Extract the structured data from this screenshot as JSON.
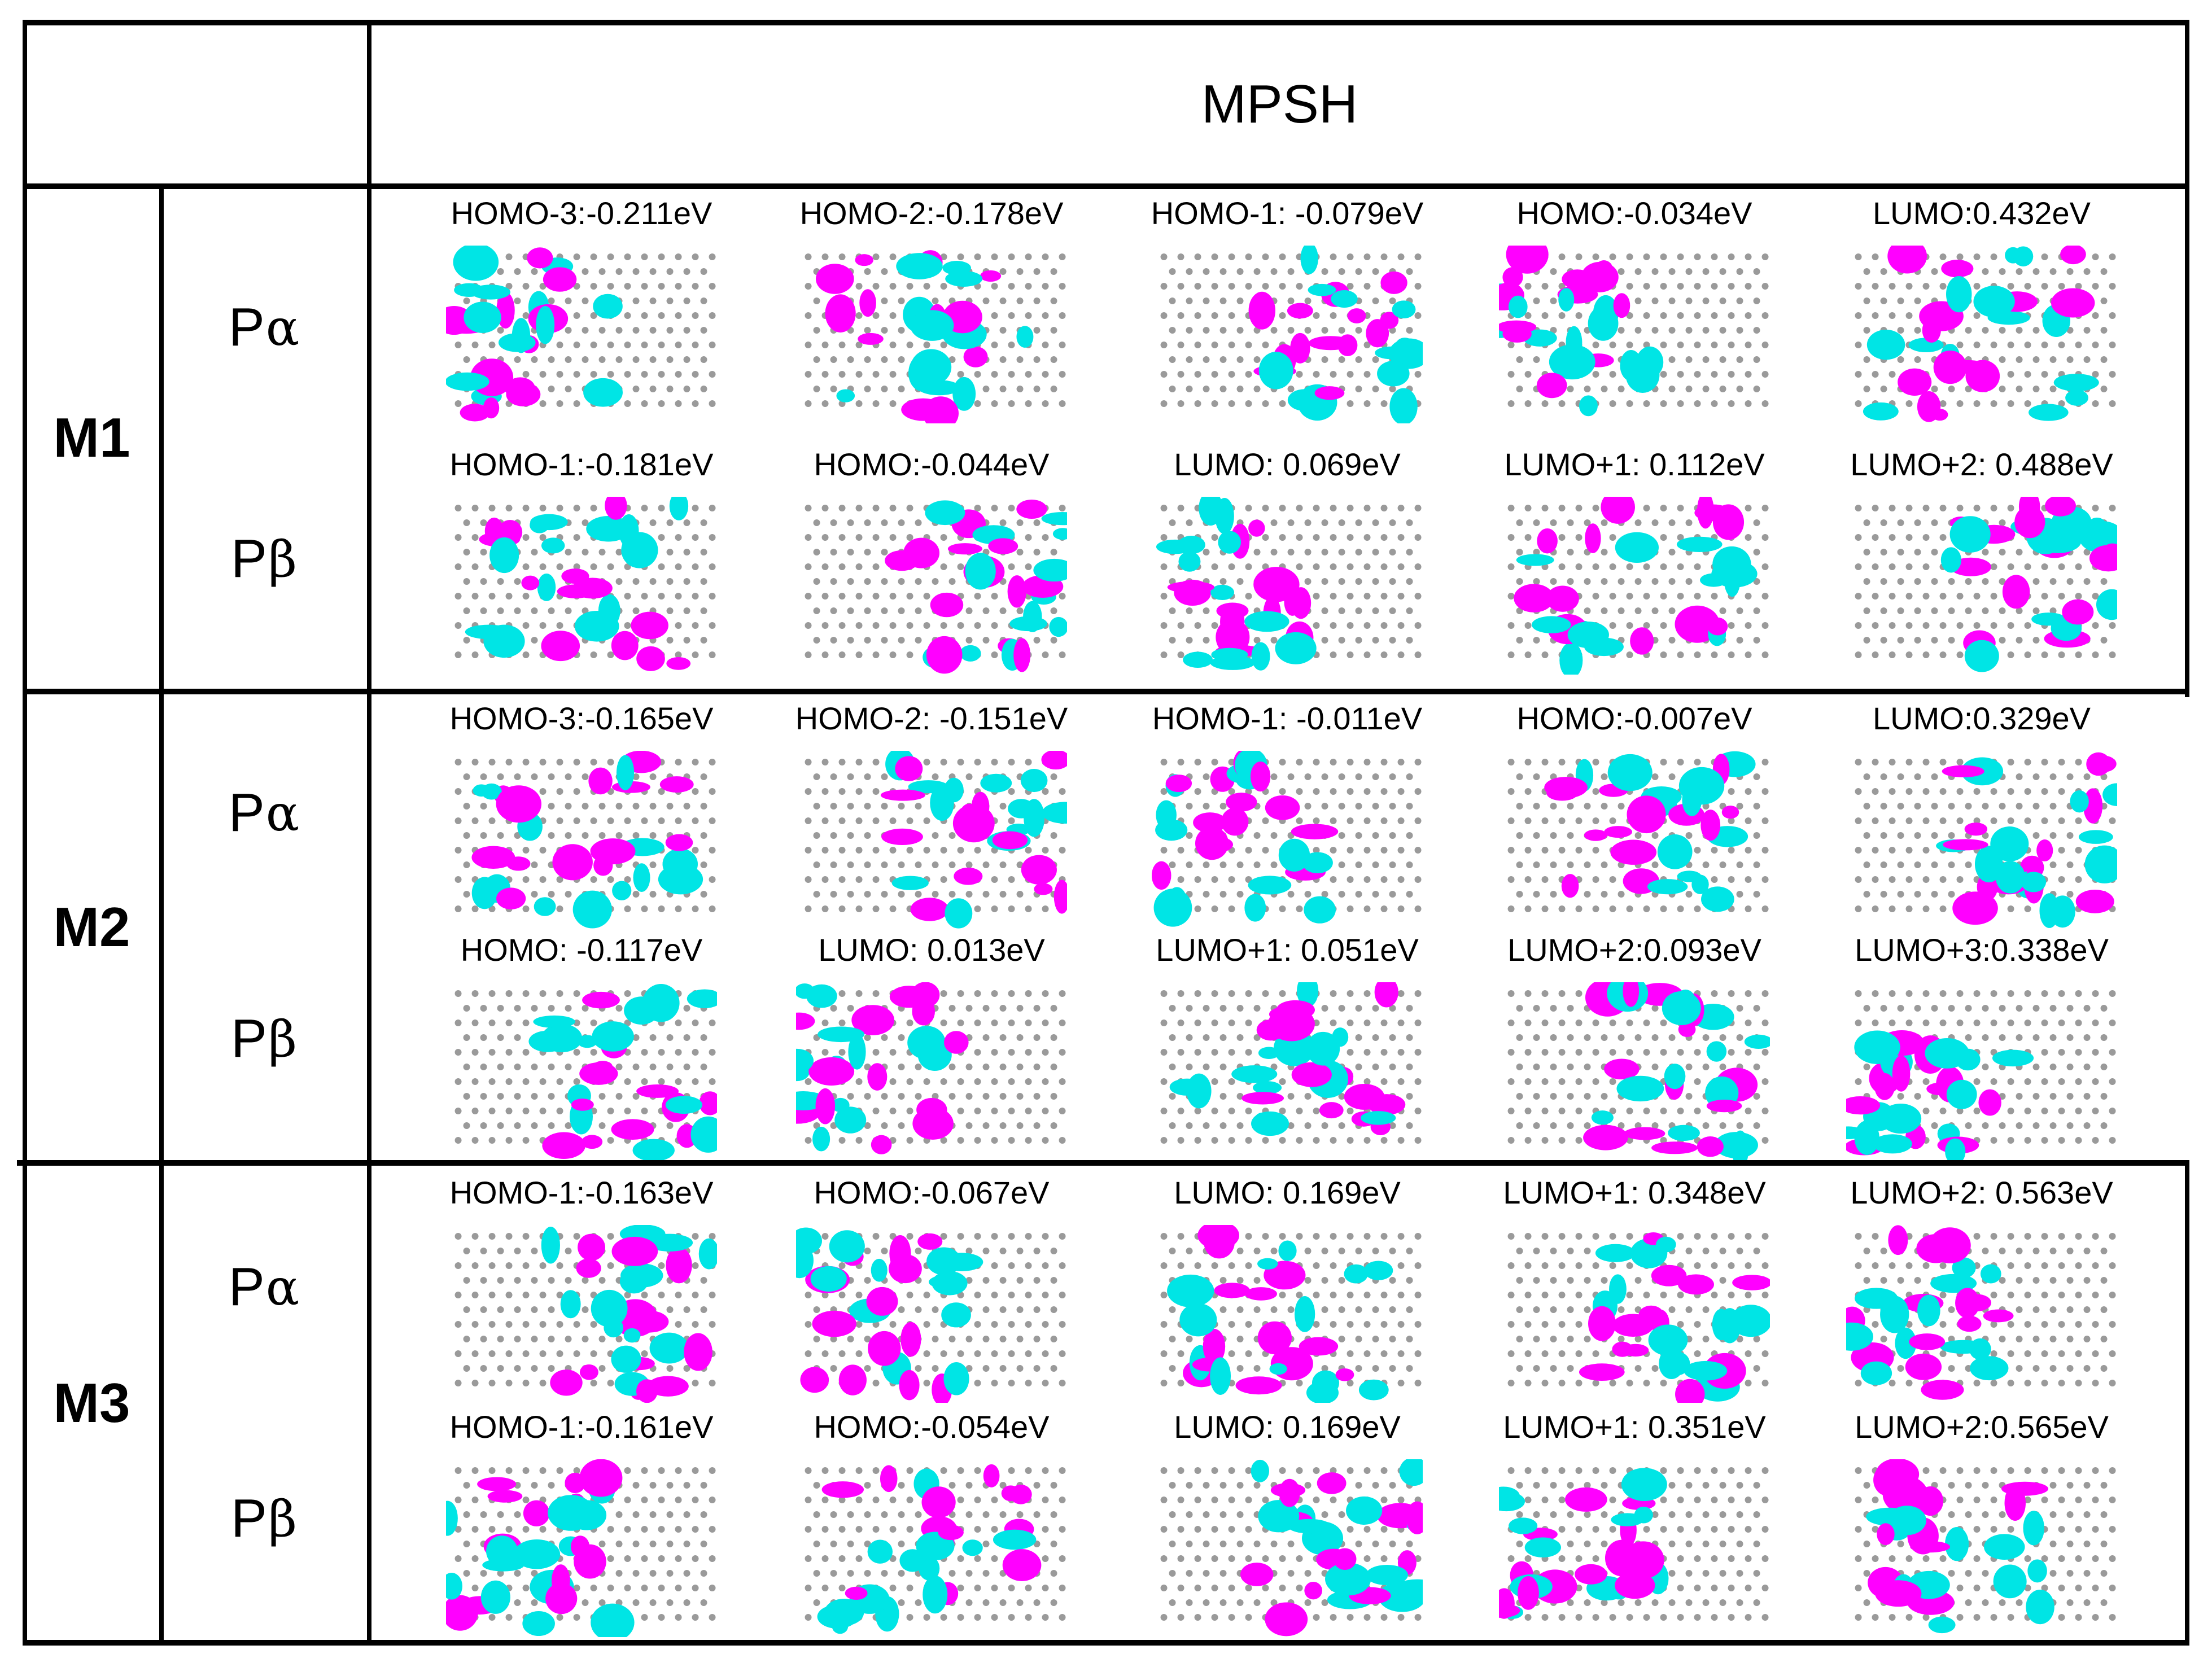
{
  "header": {
    "title": "MPSH"
  },
  "rows": [
    {
      "molecule": "M1",
      "spins": [
        {
          "label_p": "P",
          "label_greek": "α",
          "orbitals": [
            "HOMO-3:-0.211eV",
            "HOMO-2:-0.178eV",
            "HOMO-1: -0.079eV",
            "HOMO:-0.034eV",
            "LUMO:0.432eV"
          ]
        },
        {
          "label_p": "P",
          "label_greek": "β",
          "orbitals": [
            "HOMO-1:-0.181eV",
            "HOMO:-0.044eV",
            "LUMO: 0.069eV",
            "LUMO+1: 0.112eV",
            "LUMO+2: 0.488eV"
          ]
        }
      ]
    },
    {
      "molecule": "M2",
      "spins": [
        {
          "label_p": "P",
          "label_greek": "α",
          "orbitals": [
            "HOMO-3:-0.165eV",
            "HOMO-2: -0.151eV",
            "HOMO-1: -0.011eV",
            "HOMO:-0.007eV",
            "LUMO:0.329eV"
          ]
        },
        {
          "label_p": "P",
          "label_greek": "β",
          "orbitals": [
            "HOMO: -0.117eV",
            "LUMO: 0.013eV",
            "LUMO+1: 0.051eV",
            "LUMO+2:0.093eV",
            "LUMO+3:0.338eV"
          ]
        }
      ]
    },
    {
      "molecule": "M3",
      "spins": [
        {
          "label_p": "P",
          "label_greek": "α",
          "orbitals": [
            "HOMO-1:-0.163eV",
            "HOMO:-0.067eV",
            "LUMO: 0.169eV",
            "LUMO+1: 0.348eV",
            "LUMO+2: 0.563eV"
          ]
        },
        {
          "label_p": "P",
          "label_greek": "β",
          "orbitals": [
            "HOMO-1:-0.161eV",
            "HOMO:-0.054eV",
            "LUMO: 0.169eV",
            "LUMO+1: 0.351eV",
            "LUMO+2:0.565eV"
          ]
        }
      ]
    }
  ],
  "colors": {
    "lobe_positive": "#ff00ff",
    "lobe_negative": "#00e5e5",
    "atom_carbon": "#9a9a9a",
    "atom_hydrogen": "#eeeeee",
    "grid": "#000000"
  }
}
